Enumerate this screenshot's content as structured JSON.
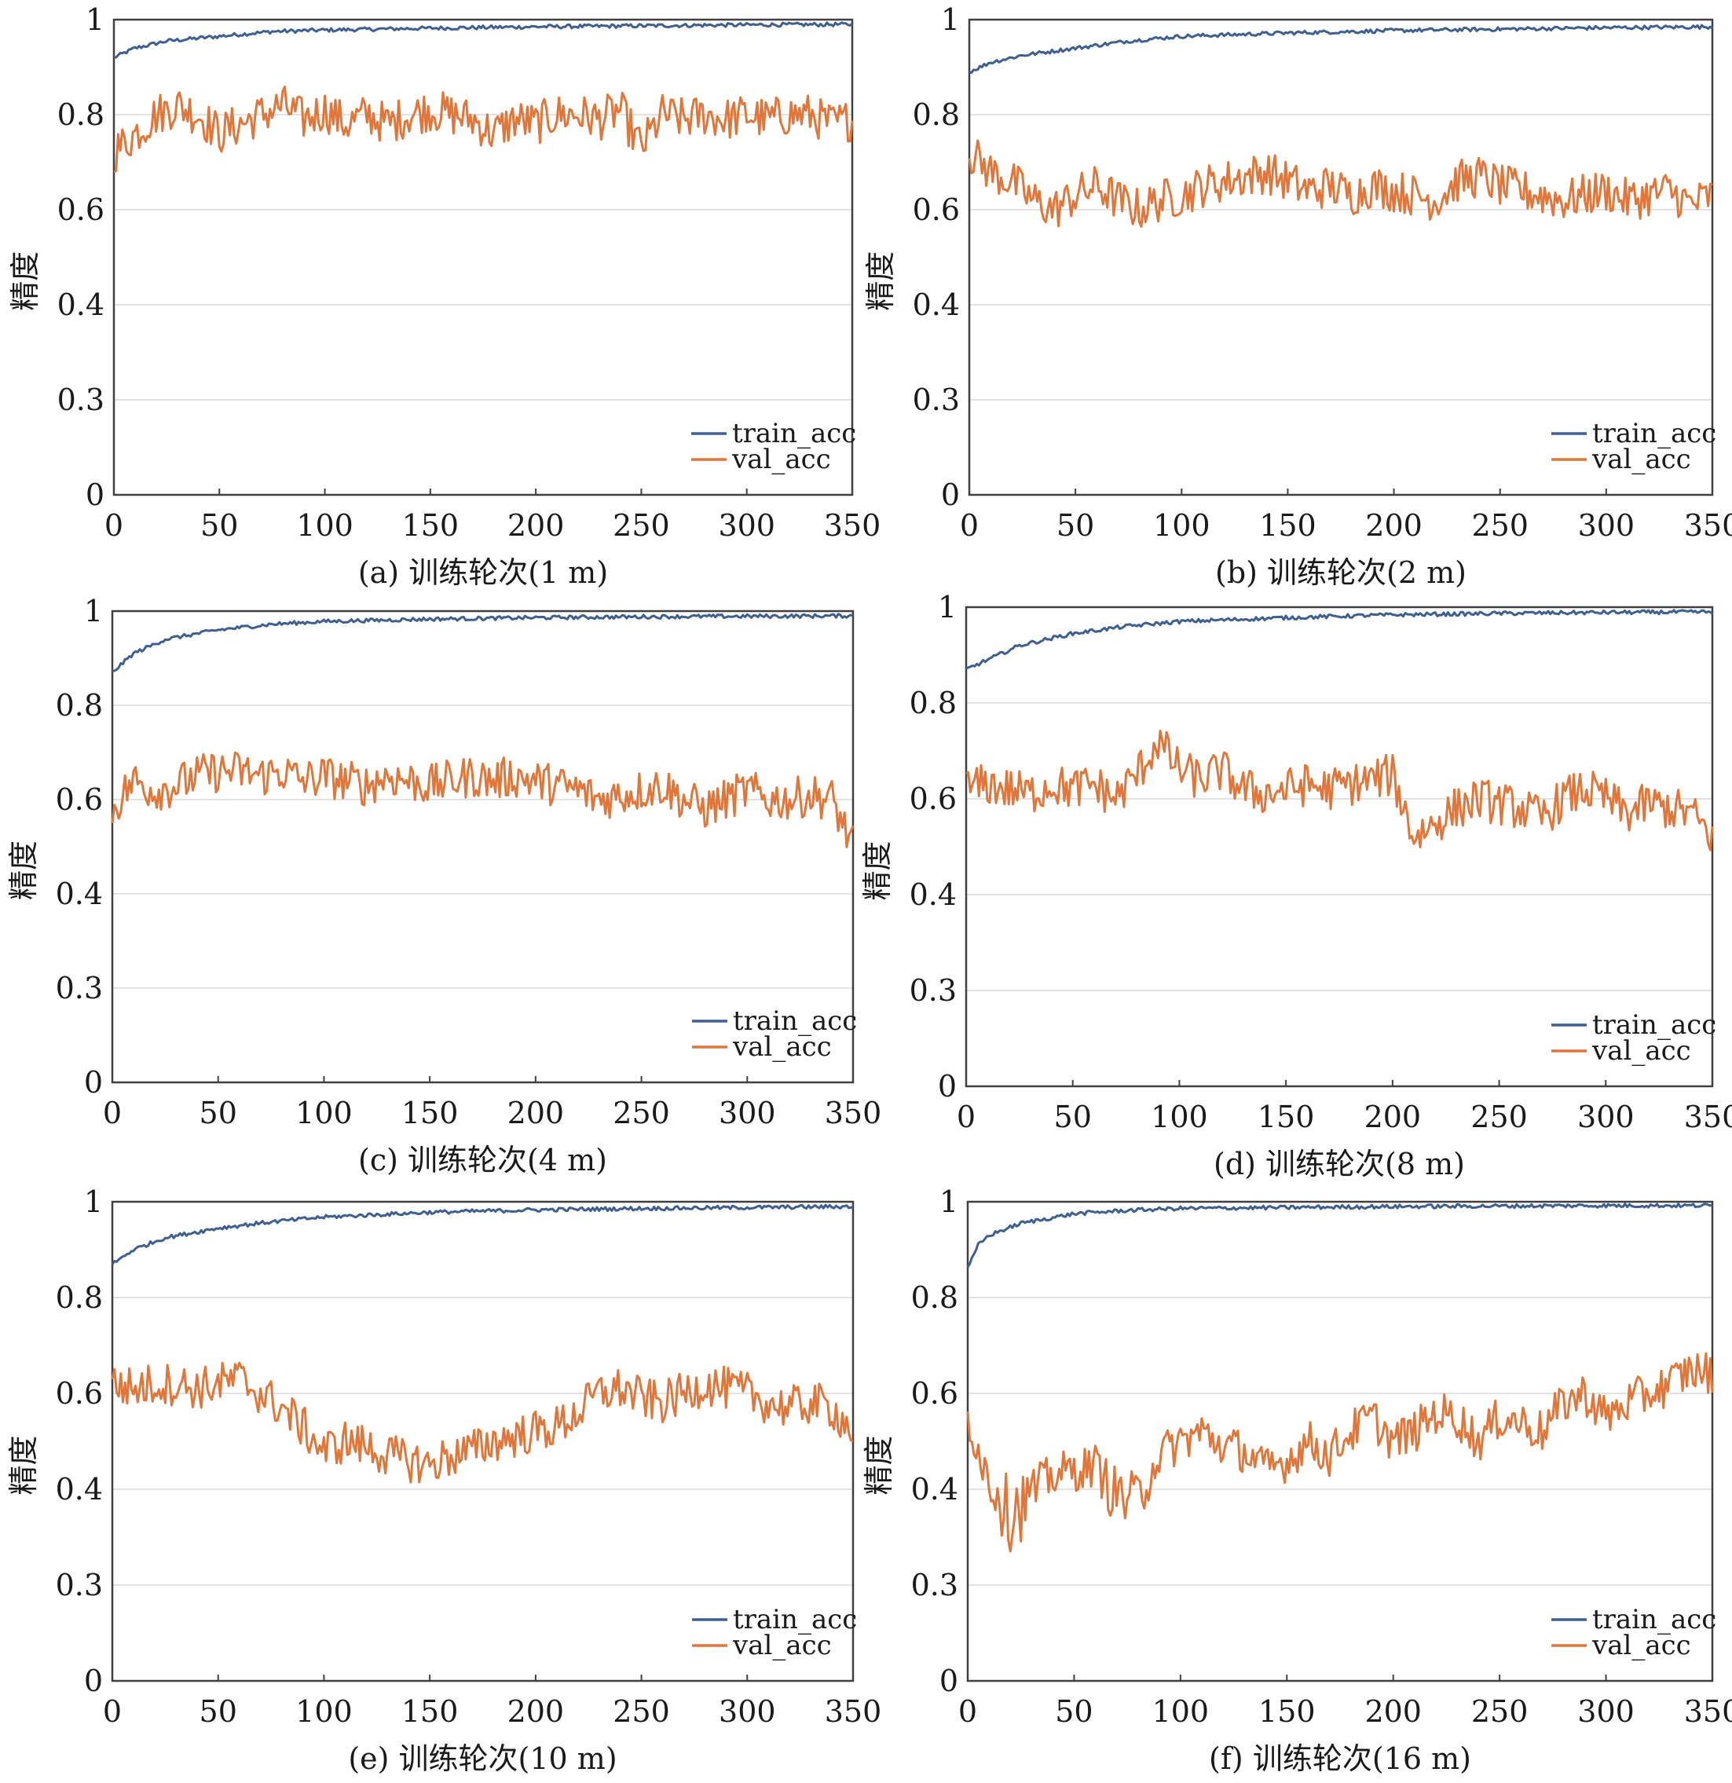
{
  "colors": {
    "train": "#3f5f8f",
    "val": "#e0763a",
    "grid": "#d9d9d9",
    "axis": "#404040"
  },
  "chart_data": [
    {
      "type": "line",
      "caption": "(a) 训练轮次(1 m)",
      "ylabel": "精度",
      "x_ticks": [
        "0",
        "50",
        "100",
        "150",
        "200",
        "250",
        "300",
        "350"
      ],
      "y_ticks": [
        "0",
        "0.3",
        "0.4",
        "0.6",
        "0.8",
        "1"
      ],
      "xlim": [
        0,
        350
      ],
      "ylim": [
        0,
        1
      ],
      "grid": "horizontal",
      "legend": "bottom-right",
      "series": [
        {
          "name": "train_acc",
          "x": [
            0,
            10,
            25,
            50,
            75,
            100,
            150,
            200,
            250,
            300,
            350
          ],
          "y": [
            0.92,
            0.94,
            0.955,
            0.965,
            0.975,
            0.978,
            0.982,
            0.985,
            0.987,
            0.989,
            0.99
          ]
        },
        {
          "name": "val_acc",
          "x": [
            0,
            10,
            20,
            30,
            40,
            50,
            60,
            70,
            80,
            90,
            100,
            110,
            120,
            130,
            140,
            150,
            160,
            170,
            180,
            190,
            200,
            210,
            220,
            230,
            240,
            250,
            260,
            270,
            280,
            290,
            300,
            310,
            320,
            330,
            340,
            350
          ],
          "y": [
            0.72,
            0.76,
            0.8,
            0.82,
            0.8,
            0.76,
            0.78,
            0.8,
            0.82,
            0.79,
            0.81,
            0.78,
            0.8,
            0.78,
            0.8,
            0.81,
            0.8,
            0.79,
            0.76,
            0.79,
            0.78,
            0.8,
            0.8,
            0.79,
            0.81,
            0.73,
            0.8,
            0.79,
            0.8,
            0.79,
            0.8,
            0.79,
            0.8,
            0.8,
            0.78,
            0.79
          ]
        }
      ]
    },
    {
      "type": "line",
      "caption": "(b) 训练轮次(2 m)",
      "ylabel": "精度",
      "x_ticks": [
        "0",
        "50",
        "100",
        "150",
        "200",
        "250",
        "300",
        "350"
      ],
      "y_ticks": [
        "0",
        "0.3",
        "0.4",
        "0.6",
        "0.8",
        "1"
      ],
      "xlim": [
        0,
        350
      ],
      "ylim": [
        0,
        1
      ],
      "grid": "horizontal",
      "legend": "bottom-right",
      "series": [
        {
          "name": "train_acc",
          "x": [
            0,
            10,
            25,
            50,
            75,
            100,
            150,
            200,
            250,
            300,
            350
          ],
          "y": [
            0.89,
            0.91,
            0.925,
            0.94,
            0.955,
            0.965,
            0.972,
            0.977,
            0.98,
            0.983,
            0.985
          ]
        },
        {
          "name": "val_acc",
          "x": [
            0,
            10,
            20,
            30,
            40,
            50,
            60,
            70,
            80,
            90,
            100,
            110,
            120,
            130,
            140,
            150,
            160,
            170,
            180,
            190,
            200,
            210,
            220,
            230,
            240,
            250,
            260,
            270,
            280,
            290,
            300,
            310,
            320,
            330,
            340,
            350
          ],
          "y": [
            0.72,
            0.68,
            0.66,
            0.62,
            0.6,
            0.63,
            0.65,
            0.62,
            0.6,
            0.62,
            0.63,
            0.65,
            0.66,
            0.67,
            0.68,
            0.66,
            0.64,
            0.65,
            0.63,
            0.65,
            0.64,
            0.63,
            0.62,
            0.66,
            0.67,
            0.65,
            0.64,
            0.63,
            0.62,
            0.63,
            0.64,
            0.62,
            0.63,
            0.64,
            0.61,
            0.63
          ]
        }
      ]
    },
    {
      "type": "line",
      "caption": "(c) 训练轮次(4 m)",
      "ylabel": "精度",
      "x_ticks": [
        "0",
        "50",
        "100",
        "150",
        "200",
        "250",
        "300",
        "350"
      ],
      "y_ticks": [
        "0",
        "0.3",
        "0.4",
        "0.6",
        "0.8",
        "1"
      ],
      "xlim": [
        0,
        350
      ],
      "ylim": [
        0,
        1
      ],
      "grid": "horizontal",
      "legend": "bottom-right",
      "series": [
        {
          "name": "train_acc",
          "x": [
            0,
            10,
            25,
            50,
            75,
            100,
            150,
            200,
            250,
            300,
            350
          ],
          "y": [
            0.87,
            0.91,
            0.94,
            0.96,
            0.972,
            0.978,
            0.983,
            0.986,
            0.988,
            0.989,
            0.99
          ]
        },
        {
          "name": "val_acc",
          "x": [
            0,
            10,
            20,
            30,
            40,
            50,
            60,
            70,
            80,
            90,
            100,
            110,
            120,
            130,
            140,
            150,
            160,
            170,
            180,
            190,
            200,
            210,
            220,
            230,
            240,
            250,
            260,
            270,
            280,
            290,
            300,
            310,
            320,
            330,
            340,
            350
          ],
          "y": [
            0.58,
            0.64,
            0.62,
            0.63,
            0.65,
            0.66,
            0.66,
            0.65,
            0.66,
            0.64,
            0.65,
            0.64,
            0.63,
            0.65,
            0.64,
            0.63,
            0.64,
            0.65,
            0.64,
            0.65,
            0.64,
            0.63,
            0.62,
            0.6,
            0.61,
            0.62,
            0.63,
            0.6,
            0.58,
            0.6,
            0.62,
            0.6,
            0.6,
            0.61,
            0.6,
            0.5
          ]
        }
      ]
    },
    {
      "type": "line",
      "caption": "(d) 训练轮次(8 m)",
      "ylabel": "精度",
      "x_ticks": [
        "0",
        "50",
        "100",
        "150",
        "200",
        "250",
        "300",
        "350"
      ],
      "y_ticks": [
        "0",
        "0.3",
        "0.4",
        "0.6",
        "0.8",
        "1"
      ],
      "xlim": [
        0,
        350
      ],
      "ylim": [
        0,
        1
      ],
      "grid": "horizontal",
      "legend": "bottom-right",
      "series": [
        {
          "name": "train_acc",
          "x": [
            0,
            10,
            25,
            50,
            75,
            100,
            150,
            200,
            250,
            300,
            350
          ],
          "y": [
            0.87,
            0.89,
            0.92,
            0.945,
            0.96,
            0.97,
            0.978,
            0.984,
            0.987,
            0.989,
            0.99
          ]
        },
        {
          "name": "val_acc",
          "x": [
            0,
            10,
            20,
            30,
            40,
            50,
            60,
            70,
            80,
            90,
            100,
            110,
            120,
            130,
            140,
            150,
            160,
            170,
            180,
            190,
            200,
            210,
            220,
            230,
            240,
            250,
            260,
            270,
            280,
            290,
            300,
            310,
            320,
            330,
            340,
            350
          ],
          "y": [
            0.62,
            0.63,
            0.62,
            0.61,
            0.63,
            0.62,
            0.63,
            0.6,
            0.65,
            0.72,
            0.66,
            0.64,
            0.66,
            0.62,
            0.61,
            0.62,
            0.63,
            0.62,
            0.63,
            0.64,
            0.65,
            0.52,
            0.55,
            0.58,
            0.6,
            0.59,
            0.58,
            0.56,
            0.6,
            0.62,
            0.6,
            0.57,
            0.59,
            0.58,
            0.57,
            0.52
          ]
        }
      ]
    },
    {
      "type": "line",
      "caption": "(e) 训练轮次(10 m)",
      "ylabel": "精度",
      "x_ticks": [
        "0",
        "50",
        "100",
        "150",
        "200",
        "250",
        "300",
        "350"
      ],
      "y_ticks": [
        "0",
        "0.3",
        "0.4",
        "0.6",
        "0.8",
        "1"
      ],
      "xlim": [
        0,
        350
      ],
      "ylim": [
        0,
        1
      ],
      "grid": "horizontal",
      "legend": "bottom-right",
      "series": [
        {
          "name": "train_acc",
          "x": [
            0,
            10,
            25,
            50,
            75,
            100,
            150,
            200,
            250,
            300,
            350
          ],
          "y": [
            0.87,
            0.9,
            0.925,
            0.945,
            0.958,
            0.968,
            0.978,
            0.983,
            0.986,
            0.988,
            0.99
          ]
        },
        {
          "name": "val_acc",
          "x": [
            0,
            10,
            20,
            30,
            40,
            50,
            60,
            70,
            80,
            90,
            100,
            110,
            120,
            130,
            140,
            150,
            160,
            170,
            180,
            190,
            200,
            210,
            220,
            230,
            240,
            250,
            260,
            270,
            280,
            290,
            300,
            310,
            320,
            330,
            340,
            350
          ],
          "y": [
            0.62,
            0.61,
            0.62,
            0.62,
            0.61,
            0.62,
            0.63,
            0.6,
            0.57,
            0.53,
            0.48,
            0.5,
            0.49,
            0.47,
            0.46,
            0.45,
            0.47,
            0.48,
            0.5,
            0.51,
            0.52,
            0.53,
            0.56,
            0.6,
            0.61,
            0.59,
            0.58,
            0.6,
            0.62,
            0.61,
            0.6,
            0.58,
            0.57,
            0.58,
            0.57,
            0.52
          ]
        }
      ]
    },
    {
      "type": "line",
      "caption": "(f) 训练轮次(16 m)",
      "ylabel": "精度",
      "x_ticks": [
        "0",
        "50",
        "100",
        "150",
        "200",
        "250",
        "300",
        "350"
      ],
      "y_ticks": [
        "0",
        "0.3",
        "0.4",
        "0.6",
        "0.8",
        "1"
      ],
      "xlim": [
        0,
        350
      ],
      "ylim": [
        0,
        1
      ],
      "grid": "horizontal",
      "legend": "bottom-right",
      "series": [
        {
          "name": "train_acc",
          "x": [
            0,
            5,
            10,
            25,
            50,
            75,
            100,
            150,
            200,
            250,
            300,
            350
          ],
          "y": [
            0.86,
            0.91,
            0.93,
            0.955,
            0.975,
            0.982,
            0.986,
            0.988,
            0.99,
            0.991,
            0.992,
            0.992
          ]
        },
        {
          "name": "val_acc",
          "x": [
            0,
            10,
            20,
            30,
            40,
            50,
            60,
            70,
            80,
            90,
            100,
            110,
            120,
            130,
            140,
            150,
            160,
            170,
            180,
            190,
            200,
            210,
            220,
            230,
            240,
            250,
            260,
            270,
            280,
            290,
            300,
            310,
            320,
            330,
            340,
            350
          ],
          "y": [
            0.55,
            0.42,
            0.38,
            0.4,
            0.43,
            0.44,
            0.45,
            0.4,
            0.39,
            0.47,
            0.5,
            0.52,
            0.49,
            0.48,
            0.44,
            0.46,
            0.5,
            0.47,
            0.52,
            0.55,
            0.5,
            0.52,
            0.56,
            0.55,
            0.5,
            0.55,
            0.54,
            0.52,
            0.58,
            0.6,
            0.55,
            0.58,
            0.6,
            0.62,
            0.65,
            0.64
          ]
        }
      ]
    }
  ],
  "legend_labels": [
    "train_acc",
    "val_acc"
  ]
}
